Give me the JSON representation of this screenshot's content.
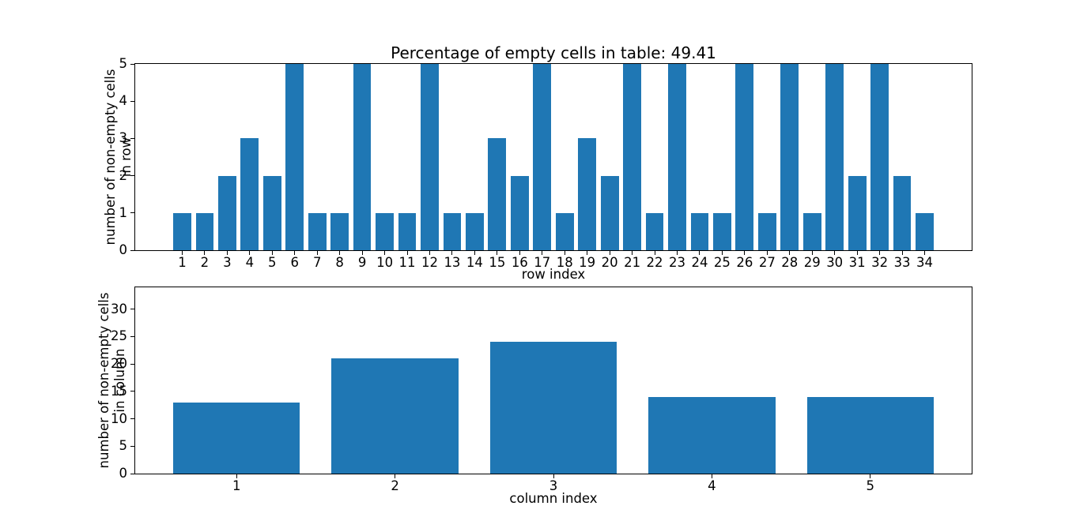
{
  "figure": {
    "background": "#ffffff",
    "text_color": "#000000"
  },
  "chart_data": [
    {
      "type": "bar",
      "title": "Percentage of empty cells in table: 49.41",
      "xlabel": "row index",
      "ylabel": "number of non-empty cells in row",
      "categories": [
        "1",
        "2",
        "3",
        "4",
        "5",
        "6",
        "7",
        "8",
        "9",
        "10",
        "11",
        "12",
        "13",
        "14",
        "15",
        "16",
        "17",
        "18",
        "19",
        "20",
        "21",
        "22",
        "23",
        "24",
        "25",
        "26",
        "27",
        "28",
        "29",
        "30",
        "31",
        "32",
        "33",
        "34"
      ],
      "values": [
        1,
        1,
        2,
        3,
        2,
        5,
        1,
        1,
        5,
        1,
        1,
        5,
        1,
        1,
        3,
        2,
        5,
        1,
        3,
        2,
        5,
        1,
        5,
        1,
        1,
        5,
        1,
        5,
        1,
        5,
        2,
        5,
        2,
        1
      ],
      "xlim": [
        -1.09,
        36.09
      ],
      "ylim": [
        0,
        5
      ],
      "yticks": [
        0,
        1,
        2,
        3,
        4,
        5
      ],
      "bar_width": 0.8,
      "bar_color": "#1f77b4",
      "grid": false,
      "legend": null
    },
    {
      "type": "bar",
      "title": "",
      "xlabel": "column index",
      "ylabel": "number of non-empty cells in column",
      "categories": [
        "1",
        "2",
        "3",
        "4",
        "5"
      ],
      "values": [
        13,
        21,
        24,
        14,
        14
      ],
      "xlim": [
        0.36,
        5.64
      ],
      "ylim": [
        0,
        34
      ],
      "yticks": [
        0,
        5,
        10,
        15,
        20,
        25,
        30
      ],
      "bar_width": 0.8,
      "bar_color": "#1f77b4",
      "grid": false,
      "legend": null
    }
  ]
}
